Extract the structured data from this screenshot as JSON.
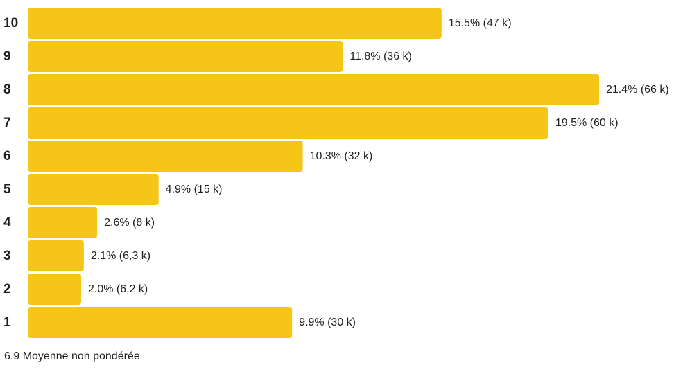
{
  "chart_data": {
    "type": "bar",
    "orientation": "horizontal",
    "categories": [
      "10",
      "9",
      "8",
      "7",
      "6",
      "5",
      "4",
      "3",
      "2",
      "1"
    ],
    "values": [
      15.5,
      11.8,
      21.4,
      19.5,
      10.3,
      4.9,
      2.6,
      2.1,
      2.0,
      9.9
    ],
    "data_labels": [
      "15.5% (47 k)",
      "11.8% (36 k)",
      "21.4% (66 k)",
      "19.5% (60 k)",
      "10.3% (32 k)",
      "4.9% (15 k)",
      "2.6% (8 k)",
      "2.1% (6,3 k)",
      "2.0% (6,2 k)",
      "9.9% (30 k)"
    ],
    "title": "",
    "xlabel": "",
    "ylabel": "",
    "xlim": [
      0,
      21.4
    ],
    "grid": false,
    "legend": "none",
    "bar_color": "#F5C518"
  },
  "footer": {
    "average_text": "6.9 Moyenne non pondérée"
  }
}
